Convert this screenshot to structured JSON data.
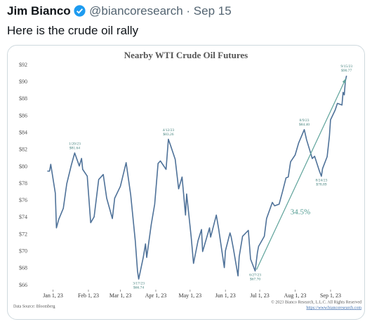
{
  "tweet": {
    "name": "Jim Bianco",
    "handle": "@biancoresearch",
    "date": "Sep 15",
    "text": "Here is the crude oil rally"
  },
  "chart_data": {
    "type": "line",
    "title": "Nearby WTI Crude Oil Futures",
    "series": [
      {
        "name": "WTI",
        "color": "#4f7299",
        "x": [
          "2022-12-27",
          "2022-12-29",
          "2022-12-30",
          "2023-01-03",
          "2023-01-04",
          "2023-01-06",
          "2023-01-10",
          "2023-01-13",
          "2023-01-17",
          "2023-01-20",
          "2023-01-24",
          "2023-01-26",
          "2023-01-27",
          "2023-01-31",
          "2023-02-03",
          "2023-02-06",
          "2023-02-10",
          "2023-02-14",
          "2023-02-17",
          "2023-02-22",
          "2023-02-24",
          "2023-03-01",
          "2023-03-06",
          "2023-03-10",
          "2023-03-14",
          "2023-03-16",
          "2023-03-17",
          "2023-03-21",
          "2023-03-23",
          "2023-03-24",
          "2023-03-28",
          "2023-03-31",
          "2023-04-03",
          "2023-04-05",
          "2023-04-10",
          "2023-04-12",
          "2023-04-14",
          "2023-04-18",
          "2023-04-21",
          "2023-04-24",
          "2023-04-27",
          "2023-04-28",
          "2023-05-02",
          "2023-05-04",
          "2023-05-08",
          "2023-05-11",
          "2023-05-12",
          "2023-05-18",
          "2023-05-19",
          "2023-05-24",
          "2023-05-26",
          "2023-05-31",
          "2023-06-01",
          "2023-06-05",
          "2023-06-06",
          "2023-06-08",
          "2023-06-12",
          "2023-06-13",
          "2023-06-16",
          "2023-06-21",
          "2023-06-23",
          "2023-06-27",
          "2023-06-29",
          "2023-06-30",
          "2023-07-05",
          "2023-07-07",
          "2023-07-12",
          "2023-07-14",
          "2023-07-18",
          "2023-07-21",
          "2023-07-24",
          "2023-07-26",
          "2023-07-28",
          "2023-08-01",
          "2023-08-04",
          "2023-08-09",
          "2023-08-11",
          "2023-08-16",
          "2023-08-18",
          "2023-08-22",
          "2023-08-24",
          "2023-08-25",
          "2023-08-29",
          "2023-08-31",
          "2023-09-01",
          "2023-09-05",
          "2023-09-07",
          "2023-09-11",
          "2023-09-12",
          "2023-09-13",
          "2023-09-14",
          "2023-09-15"
        ],
        "values": [
          79.5,
          79.5,
          80.3,
          76.9,
          72.8,
          73.8,
          75.1,
          78.0,
          80.2,
          81.64,
          80.1,
          81.0,
          79.7,
          78.9,
          73.4,
          74.1,
          78.5,
          79.1,
          76.3,
          73.9,
          76.3,
          77.7,
          80.5,
          76.7,
          71.3,
          67.7,
          66.74,
          69.3,
          70.9,
          69.3,
          73.2,
          75.6,
          80.4,
          80.7,
          79.7,
          83.26,
          82.5,
          80.9,
          77.4,
          78.8,
          74.3,
          76.8,
          71.7,
          68.6,
          71.3,
          72.6,
          70.0,
          72.8,
          71.7,
          74.3,
          72.7,
          68.1,
          70.1,
          72.2,
          71.7,
          70.3,
          67.12,
          69.4,
          71.8,
          72.5,
          69.1,
          67.7,
          69.9,
          70.6,
          71.8,
          73.9,
          75.8,
          75.4,
          75.6,
          77.1,
          78.7,
          78.8,
          80.6,
          81.4,
          82.8,
          84.4,
          83.2,
          80.99,
          81.25,
          79.6,
          78.89,
          79.8,
          81.2,
          83.6,
          85.55,
          86.7,
          87.5,
          87.3,
          88.8,
          88.5,
          90.16,
          90.77
        ]
      }
    ],
    "xlim": [
      "2022-12-20",
      "2023-09-25"
    ],
    "xticks": [
      {
        "value": "2023-01-01",
        "label": "Jan 1, 23"
      },
      {
        "value": "2023-02-01",
        "label": "Feb 1, 23"
      },
      {
        "value": "2023-03-01",
        "label": "Mar 1, 23"
      },
      {
        "value": "2023-04-01",
        "label": "Apr 1, 23"
      },
      {
        "value": "2023-05-01",
        "label": "May 1, 23"
      },
      {
        "value": "2023-06-01",
        "label": "Jun 1, 23"
      },
      {
        "value": "2023-07-01",
        "label": "Jul 1, 23"
      },
      {
        "value": "2023-08-01",
        "label": "Aug 1, 23"
      },
      {
        "value": "2023-09-01",
        "label": "Sep 1, 23"
      }
    ],
    "ylim": [
      65.5,
      92.5
    ],
    "yticks": [
      {
        "value": 66,
        "label": "$66"
      },
      {
        "value": 68,
        "label": "$68"
      },
      {
        "value": 70,
        "label": "$70"
      },
      {
        "value": 72,
        "label": "$72"
      },
      {
        "value": 74,
        "label": "$74"
      },
      {
        "value": 76,
        "label": "$76"
      },
      {
        "value": 78,
        "label": "$78"
      },
      {
        "value": 80,
        "label": "$80"
      },
      {
        "value": 82,
        "label": "$82"
      },
      {
        "value": 84,
        "label": "$84"
      },
      {
        "value": 86,
        "label": "$86"
      },
      {
        "value": 88,
        "label": "$88"
      },
      {
        "value": 90,
        "label": "$90"
      },
      {
        "value": 92,
        "label": "$92"
      }
    ],
    "grid": false,
    "annotations": [
      {
        "text": "1/20/23",
        "value_label": "$81.64",
        "x": "2023-01-20",
        "y": 81.64
      },
      {
        "text": "3/17/23",
        "value_label": "$66.74",
        "x": "2023-03-17",
        "y": 66.74
      },
      {
        "text": "4/12/23",
        "value_label": "$83.26",
        "x": "2023-04-12",
        "y": 83.26
      },
      {
        "text": "6/27/23",
        "value_label": "$67.70",
        "x": "2023-06-27",
        "y": 67.7
      },
      {
        "text": "8/9/23",
        "value_label": "$84.40",
        "x": "2023-08-09",
        "y": 84.4
      },
      {
        "text": "8/24/23",
        "value_label": "$78.89",
        "x": "2023-08-24",
        "y": 78.89
      },
      {
        "text": "9/15/23",
        "value_label": "$90.77",
        "x": "2023-09-15",
        "y": 90.77
      }
    ],
    "arrow_label": "34.5%",
    "source": "Data Source: Bloomberg",
    "copyright": "© 2023 Bianco Research, L.L.C. All Rights Reserved",
    "url": "https://www.biancoresearch.com"
  }
}
